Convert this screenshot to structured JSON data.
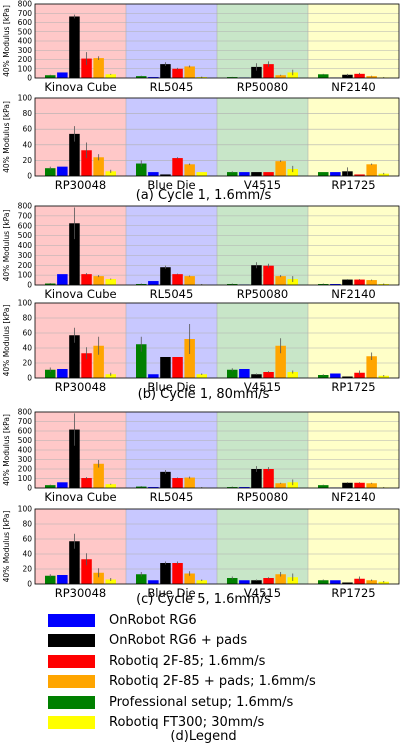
{
  "chart_data": [
    {
      "type": "bar",
      "caption": "",
      "ylabel": "40% Modulus [kPa]",
      "ylim": [
        0,
        800
      ],
      "yticks": [
        "0",
        "100",
        "200",
        "300",
        "400",
        "500",
        "600",
        "700",
        "800"
      ],
      "groups": [
        "Kinova Cube",
        "RL5045",
        "RP50080",
        "NF2140"
      ],
      "series": [
        {
          "values": [
            60,
            10,
            5,
            5
          ]
        },
        {
          "values": [
            665,
            150,
            120,
            35
          ]
        },
        {
          "values": [
            210,
            100,
            150,
            45
          ]
        },
        {
          "values": [
            215,
            125,
            30,
            20
          ]
        },
        {
          "values": [
            30,
            20,
            10,
            40
          ]
        },
        {
          "values": [
            40,
            10,
            60,
            5
          ]
        }
      ],
      "errors": [
        [
          0,
          0,
          0,
          0
        ],
        [
          20,
          20,
          40,
          10
        ],
        [
          70,
          10,
          30,
          10
        ],
        [
          20,
          10,
          5,
          5
        ],
        [
          5,
          5,
          2,
          5
        ],
        [
          5,
          5,
          30,
          5
        ]
      ]
    },
    {
      "type": "bar",
      "caption": "(a) Cycle 1, 1.6mm/s",
      "ylabel": "40% Modulus [kPa]",
      "ylim": [
        0,
        100
      ],
      "yticks": [
        "0",
        "20",
        "40",
        "60",
        "80",
        "100"
      ],
      "groups": [
        "RP30048",
        "Blue Die",
        "V4515",
        "RP1725"
      ],
      "series": [
        {
          "values": [
            12,
            5,
            5,
            5
          ]
        },
        {
          "values": [
            54,
            2,
            5,
            6
          ]
        },
        {
          "values": [
            33,
            23,
            5,
            2
          ]
        },
        {
          "values": [
            24,
            15,
            19,
            15
          ]
        },
        {
          "values": [
            10,
            16,
            5,
            5
          ]
        },
        {
          "values": [
            6,
            5,
            9,
            3
          ]
        }
      ],
      "errors": [
        [
          0,
          0,
          0,
          0
        ],
        [
          10,
          0,
          0,
          5
        ],
        [
          10,
          1,
          0,
          0
        ],
        [
          4,
          1,
          1,
          1
        ],
        [
          2,
          4,
          1,
          0
        ],
        [
          2,
          0,
          4,
          1
        ]
      ]
    },
    {
      "type": "bar",
      "caption": "",
      "ylabel": "40% Modulus [kPa]",
      "ylim": [
        0,
        800
      ],
      "yticks": [
        "0",
        "100",
        "200",
        "300",
        "400",
        "500",
        "600",
        "700",
        "800"
      ],
      "groups": [
        "Kinova Cube",
        "RL5045",
        "RP50080",
        "NF2140"
      ],
      "series": [
        {
          "values": [
            110,
            40,
            5,
            10
          ]
        },
        {
          "values": [
            625,
            180,
            200,
            55
          ]
        },
        {
          "values": [
            110,
            110,
            195,
            55
          ]
        },
        {
          "values": [
            90,
            90,
            90,
            50
          ]
        },
        {
          "values": [
            15,
            10,
            10,
            10
          ]
        },
        {
          "values": [
            60,
            5,
            60,
            10
          ]
        }
      ],
      "errors": [
        [
          0,
          0,
          0,
          0
        ],
        [
          160,
          15,
          30,
          5
        ],
        [
          10,
          5,
          20,
          5
        ],
        [
          10,
          5,
          10,
          5
        ],
        [
          5,
          5,
          5,
          5
        ],
        [
          5,
          5,
          30,
          5
        ]
      ]
    },
    {
      "type": "bar",
      "caption": "(b) Cycle 1, 80mm/s",
      "ylabel": "40% Modulus [kPa]",
      "ylim": [
        0,
        100
      ],
      "yticks": [
        "0",
        "20",
        "40",
        "60",
        "80",
        "100"
      ],
      "groups": [
        "RP30048",
        "Blue Die",
        "V4515",
        "RP1725"
      ],
      "series": [
        {
          "values": [
            12,
            5,
            12,
            6
          ]
        },
        {
          "values": [
            57,
            28,
            5,
            2
          ]
        },
        {
          "values": [
            33,
            28,
            8,
            7
          ]
        },
        {
          "values": [
            43,
            52,
            43,
            29
          ]
        },
        {
          "values": [
            11,
            45,
            11,
            4
          ]
        },
        {
          "values": [
            5,
            5,
            8,
            3
          ]
        }
      ],
      "errors": [
        [
          0,
          0,
          0,
          0
        ],
        [
          10,
          0,
          1,
          0
        ],
        [
          8,
          0,
          1,
          3
        ],
        [
          12,
          20,
          10,
          5
        ],
        [
          3,
          10,
          2,
          1
        ],
        [
          2,
          1,
          2,
          1
        ]
      ]
    },
    {
      "type": "bar",
      "caption": "",
      "ylabel": "40% Modulus [kPa]",
      "ylim": [
        0,
        800
      ],
      "yticks": [
        "0",
        "100",
        "200",
        "300",
        "400",
        "500",
        "600",
        "700",
        "800"
      ],
      "groups": [
        "Kinova Cube",
        "RL5045",
        "RP50080",
        "NF2140"
      ],
      "series": [
        {
          "values": [
            60,
            10,
            10,
            5
          ]
        },
        {
          "values": [
            615,
            170,
            200,
            55
          ]
        },
        {
          "values": [
            105,
            105,
            200,
            55
          ]
        },
        {
          "values": [
            255,
            110,
            50,
            50
          ]
        },
        {
          "values": [
            30,
            15,
            10,
            30
          ]
        },
        {
          "values": [
            40,
            5,
            60,
            5
          ]
        }
      ],
      "errors": [
        [
          0,
          0,
          0,
          0
        ],
        [
          170,
          20,
          30,
          5
        ],
        [
          10,
          5,
          20,
          5
        ],
        [
          40,
          10,
          5,
          5
        ],
        [
          5,
          5,
          5,
          5
        ],
        [
          5,
          5,
          30,
          5
        ]
      ]
    },
    {
      "type": "bar",
      "caption": "(c) Cycle 5, 1.6mm/s",
      "ylabel": "40% Modulus [kPa]",
      "ylim": [
        0,
        100
      ],
      "yticks": [
        "0",
        "20",
        "40",
        "60",
        "80",
        "100"
      ],
      "groups": [
        "RP30048",
        "Blue Die",
        "V4515",
        "RP1725"
      ],
      "series": [
        {
          "values": [
            12,
            5,
            5,
            5
          ]
        },
        {
          "values": [
            57,
            28,
            5,
            2
          ]
        },
        {
          "values": [
            33,
            28,
            8,
            7
          ]
        },
        {
          "values": [
            15,
            14,
            13,
            5
          ]
        },
        {
          "values": [
            11,
            13,
            8,
            5
          ]
        },
        {
          "values": [
            6,
            5,
            9,
            3
          ]
        }
      ],
      "errors": [
        [
          0,
          0,
          0,
          0
        ],
        [
          10,
          2,
          1,
          0
        ],
        [
          8,
          2,
          1,
          3
        ],
        [
          6,
          3,
          3,
          1
        ],
        [
          2,
          3,
          2,
          1
        ],
        [
          2,
          1,
          5,
          1
        ]
      ]
    }
  ],
  "legend": {
    "caption": "(d)Legend",
    "entries": [
      {
        "label": "OnRobot RG6",
        "color": "#0000ff"
      },
      {
        "label": "OnRobot RG6 + pads",
        "color": "#000000"
      },
      {
        "label": "Robotiq 2F-85; 1.6mm/s",
        "color": "#ff0000"
      },
      {
        "label": "Robotiq 2F-85 + pads; 1.6mm/s",
        "color": "#ffa500"
      },
      {
        "label": "Professional setup; 1.6mm/s",
        "color": "#008000"
      },
      {
        "label": "Robotiq FT300; 30mm/s",
        "color": "#ffff00"
      }
    ]
  },
  "group_backgrounds": [
    "#ffc8c8",
    "#c8c8ff",
    "#c8e6c8",
    "#ffffc8"
  ]
}
